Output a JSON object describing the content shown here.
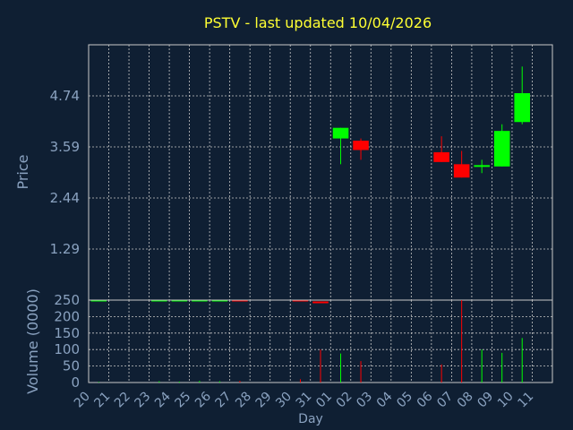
{
  "chart_data": {
    "type": "candlestick",
    "title": "PSTV - last updated 10/04/2026",
    "xlabel": "Day",
    "ylabel_price": "Price",
    "ylabel_volume": "Volume (0000)",
    "price_ticks": [
      "1.29",
      "2.44",
      "3.59",
      "4.74"
    ],
    "price_ylim": [
      0.14,
      5.89
    ],
    "volume_ticks": [
      "0",
      "50",
      "100",
      "150",
      "200",
      "250"
    ],
    "volume_ylim": [
      0,
      250
    ],
    "grid": true,
    "days": [
      "20",
      "21",
      "22",
      "23",
      "24",
      "25",
      "26",
      "27",
      "28",
      "29",
      "30",
      "31",
      "01",
      "02",
      "03",
      "04",
      "05",
      "06",
      "07",
      "08",
      "09",
      "10",
      "11"
    ],
    "colors": {
      "background": "#0f1f33",
      "grid": "#c8c8c8",
      "up": "#00ff00",
      "down": "#ff0000",
      "title": "#ffff33",
      "axis_text": "#8aa2c0"
    },
    "candles": [
      {
        "day": "20",
        "open": 0.15,
        "high": 0.15,
        "low": 0.15,
        "close": 0.15,
        "volume": 2
      },
      {
        "day": "23",
        "open": 0.14,
        "high": 0.14,
        "low": 0.14,
        "close": 0.15,
        "volume": 4
      },
      {
        "day": "24",
        "open": 0.14,
        "high": 0.14,
        "low": 0.14,
        "close": 0.15,
        "volume": 3
      },
      {
        "day": "25",
        "open": 0.14,
        "high": 0.14,
        "low": 0.14,
        "close": 0.15,
        "volume": 5
      },
      {
        "day": "26",
        "open": 0.14,
        "high": 0.14,
        "low": 0.14,
        "close": 0.15,
        "volume": 4
      },
      {
        "day": "27",
        "open": 0.15,
        "high": 0.15,
        "low": 0.14,
        "close": 0.14,
        "volume": 5
      },
      {
        "day": "30",
        "open": 0.15,
        "high": 0.15,
        "low": 0.12,
        "close": 0.12,
        "volume": 10
      },
      {
        "day": "31",
        "open": 0.11,
        "high": 0.11,
        "low": 0.1,
        "close": 0.1,
        "volume": 100
      },
      {
        "day": "01",
        "open": 3.78,
        "high": 4.02,
        "low": 3.2,
        "close": 4.02,
        "volume": 88
      },
      {
        "day": "02",
        "open": 3.73,
        "high": 3.78,
        "low": 3.3,
        "close": 3.52,
        "volume": 65
      },
      {
        "day": "06",
        "open": 3.47,
        "high": 3.83,
        "low": 3.25,
        "close": 3.25,
        "volume": 55
      },
      {
        "day": "07",
        "open": 3.2,
        "high": 3.5,
        "low": 2.9,
        "close": 2.9,
        "volume": 250
      },
      {
        "day": "08",
        "open": 3.15,
        "high": 3.3,
        "low": 3.0,
        "close": 3.18,
        "volume": 100
      },
      {
        "day": "09",
        "open": 3.15,
        "high": 4.1,
        "low": 3.15,
        "close": 3.95,
        "volume": 90
      },
      {
        "day": "10",
        "open": 4.15,
        "high": 5.4,
        "low": 4.1,
        "close": 4.8,
        "volume": 135
      }
    ]
  }
}
